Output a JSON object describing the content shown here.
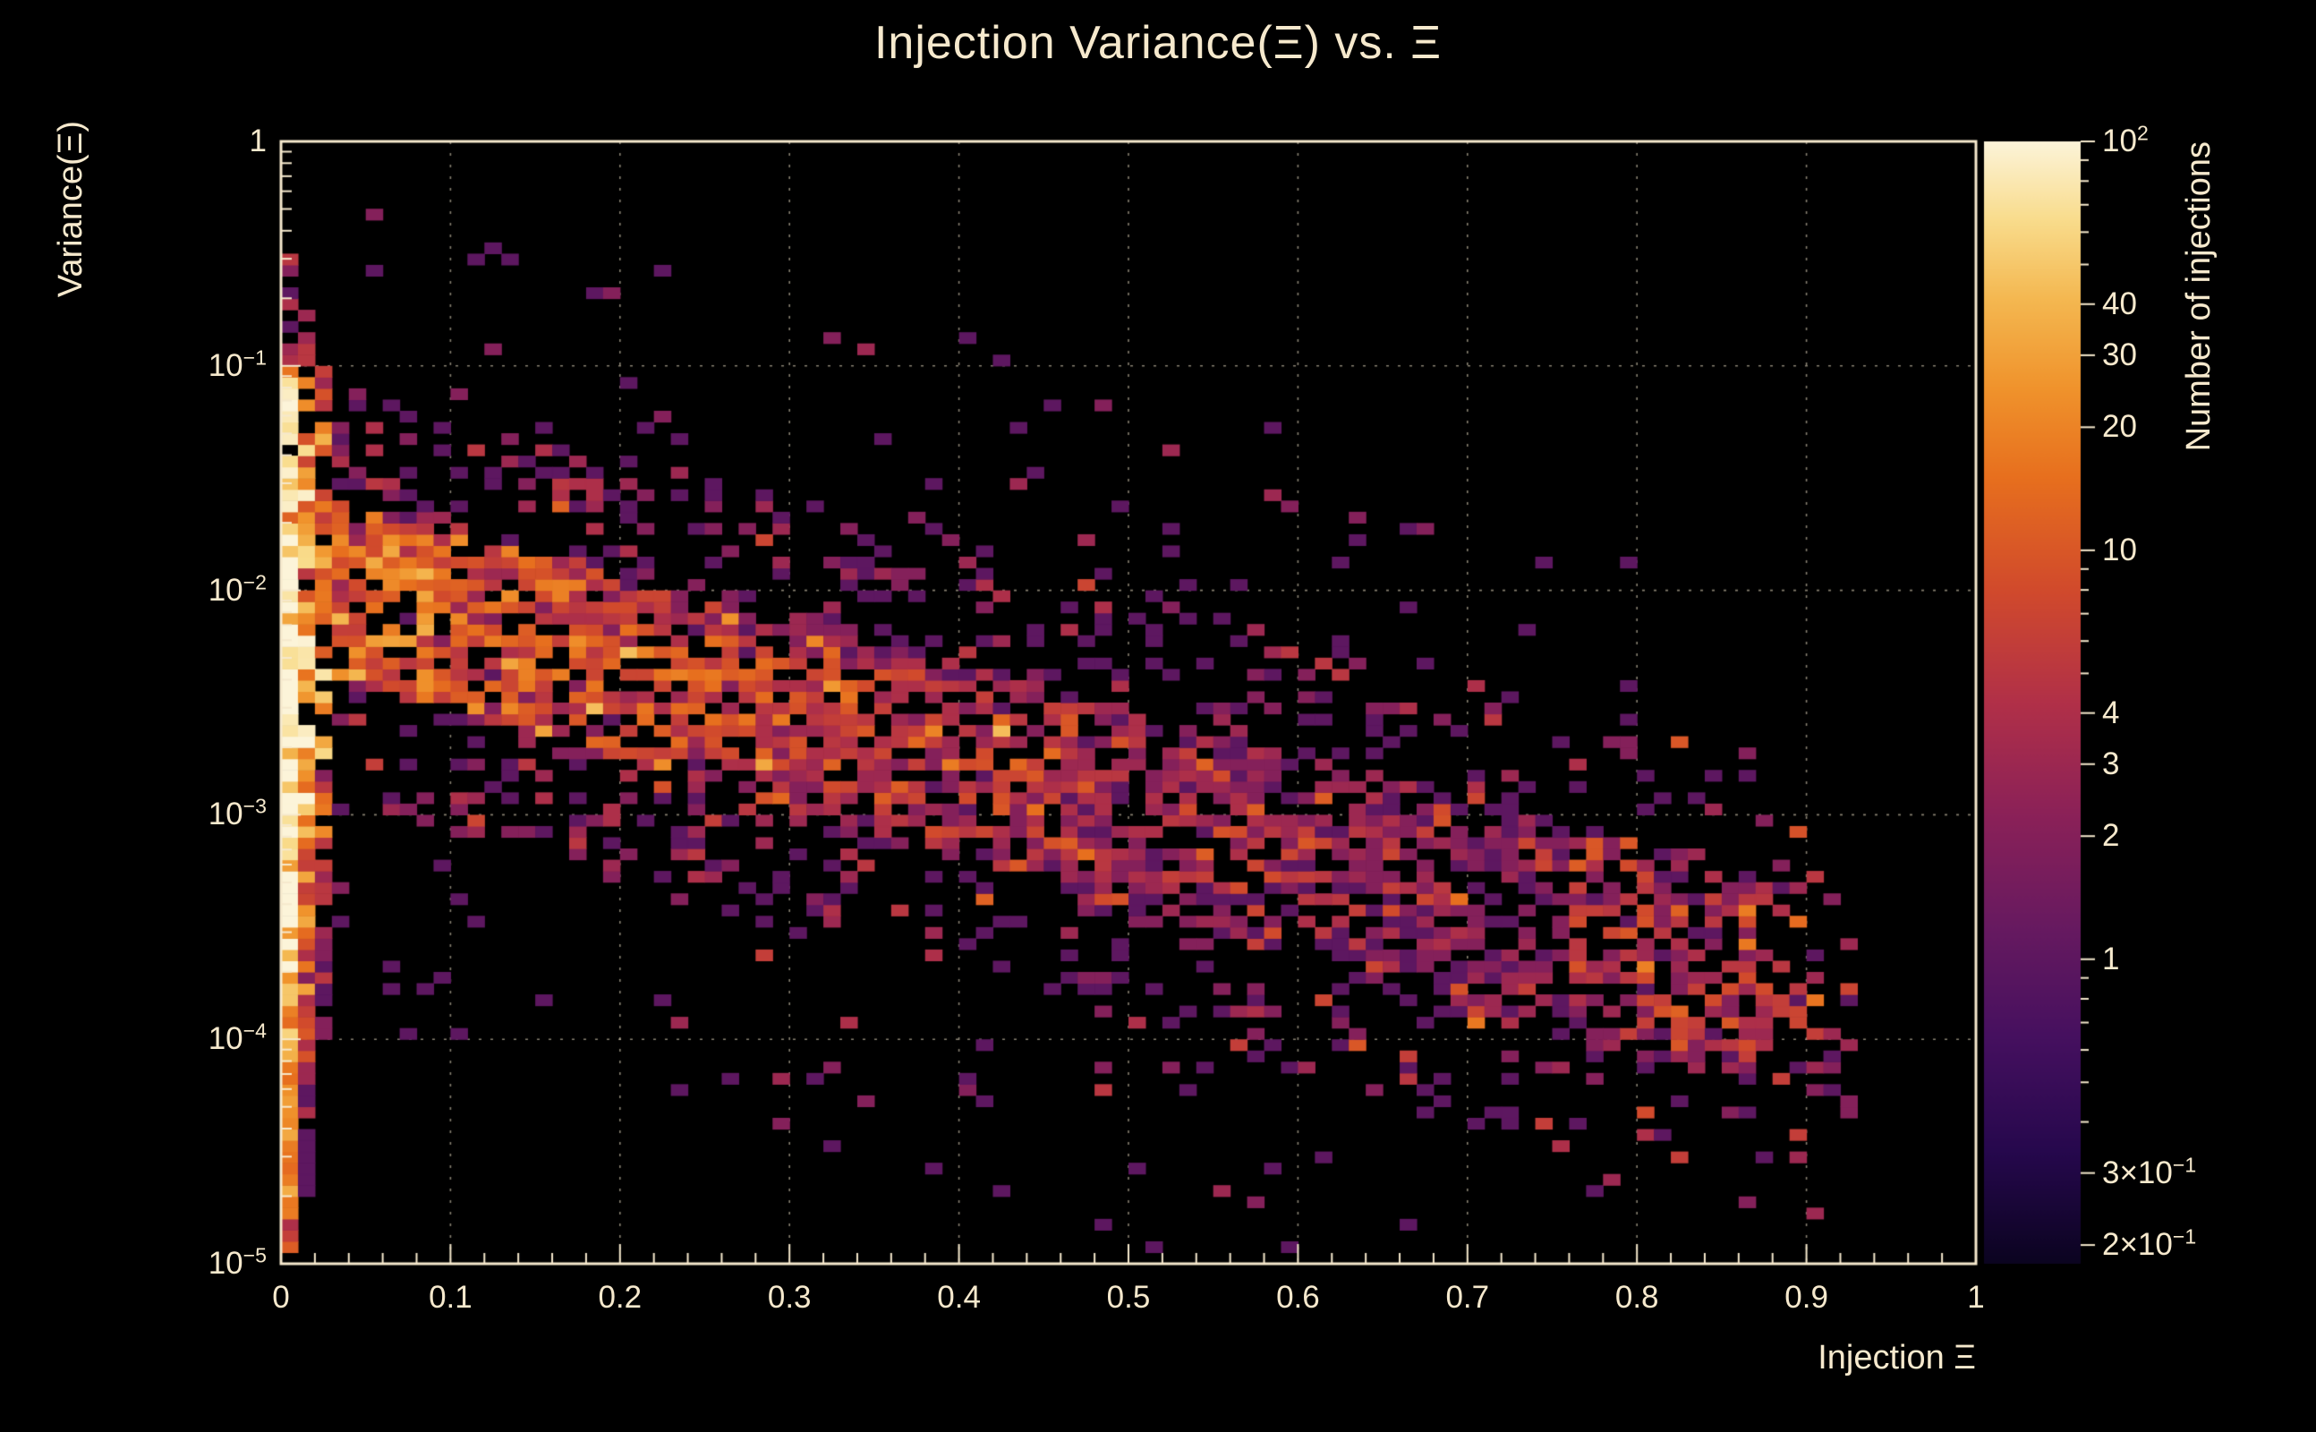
{
  "theme": {
    "background": "#000000",
    "foreground": "#f6e9cd",
    "grid_color": "rgba(246,233,205,0.55)"
  },
  "chart_data": {
    "type": "heatmap",
    "title": "Injection Variance(Ξ) vs. Ξ",
    "xlabel": "Injection Ξ",
    "ylabel": "Variance(Ξ)",
    "zlabel": "Number of injections",
    "xlim": [
      0,
      1
    ],
    "ylim": [
      1e-05,
      1
    ],
    "yscale": "log",
    "zlim": [
      0.18,
      100
    ],
    "zscale": "log",
    "grid": true,
    "legend_position": "right-colorbar",
    "x_ticks": [
      {
        "v": 0,
        "t": "0"
      },
      {
        "v": 0.1,
        "t": "0.1"
      },
      {
        "v": 0.2,
        "t": "0.2"
      },
      {
        "v": 0.3,
        "t": "0.3"
      },
      {
        "v": 0.4,
        "t": "0.4"
      },
      {
        "v": 0.5,
        "t": "0.5"
      },
      {
        "v": 0.6,
        "t": "0.6"
      },
      {
        "v": 0.7,
        "t": "0.7"
      },
      {
        "v": 0.8,
        "t": "0.8"
      },
      {
        "v": 0.9,
        "t": "0.9"
      },
      {
        "v": 1,
        "t": "1"
      }
    ],
    "x_minor_step": 0.02,
    "y_ticks": [
      {
        "v": 1,
        "t": "1"
      },
      {
        "v": 0.1,
        "m": "10",
        "e": "−1"
      },
      {
        "v": 0.01,
        "m": "10",
        "e": "−2"
      },
      {
        "v": 0.001,
        "m": "10",
        "e": "−3"
      },
      {
        "v": 0.0001,
        "m": "10",
        "e": "−4"
      },
      {
        "v": 1e-05,
        "m": "10",
        "e": "−5"
      }
    ],
    "z_ticks": [
      {
        "v": 100,
        "m": "10",
        "e": "2"
      },
      {
        "v": 40,
        "t": "40"
      },
      {
        "v": 30,
        "t": "30"
      },
      {
        "v": 20,
        "t": "20"
      },
      {
        "v": 10,
        "t": "10"
      },
      {
        "v": 4,
        "t": "4"
      },
      {
        "v": 3,
        "t": "3"
      },
      {
        "v": 2,
        "t": "2"
      },
      {
        "v": 1,
        "t": "1"
      },
      {
        "v": 0.3,
        "pre": "3×",
        "m": "10",
        "e": "−1"
      },
      {
        "v": 0.2,
        "pre": "2×",
        "m": "10",
        "e": "−1"
      }
    ],
    "palette": [
      [
        0.0,
        "#0b0420"
      ],
      [
        0.1,
        "#26084d"
      ],
      [
        0.2,
        "#45105f"
      ],
      [
        0.3,
        "#671a60"
      ],
      [
        0.4,
        "#8b2158"
      ],
      [
        0.5,
        "#b13048"
      ],
      [
        0.6,
        "#d14a2c"
      ],
      [
        0.7,
        "#e76f1e"
      ],
      [
        0.78,
        "#f0932c"
      ],
      [
        0.86,
        "#f4b851"
      ],
      [
        0.93,
        "#f9dc8c"
      ],
      [
        1.0,
        "#fcf4d9"
      ]
    ],
    "bins": {
      "nx": 100,
      "ny": 100,
      "seed": 1337,
      "ridge_intercept": -1.93,
      "ridge_slope": -2.08,
      "amp_base": 2,
      "amp_scale": 14,
      "amp_decay": 4.5,
      "cluster_x": [
        0.76,
        0.9
      ],
      "cluster_boost": 2,
      "core_width_base": 0.38,
      "core_width_slope": 0.12,
      "p_core_base": 0.82,
      "p_core_slope": 0.25,
      "p_mid_base": 0.3,
      "p_mid_slope": 0.18,
      "mid_extent": 0.55,
      "outer_extent": 1.5,
      "upper_scatter_xmax": 0.35,
      "upper_scatter_ymax": -1.05,
      "lognorm_sigma": 0.75,
      "xmax_cut": 0.925,
      "count_cap_left": 110,
      "count_cap_band": 45,
      "col_profiles": [
        {
          "yr": [
            -4.97,
            -0.5
          ],
          "p": 0.97,
          "amp": 100,
          "mu": -2.6,
          "w": 1.5
        },
        {
          "yr": [
            -4.7,
            -0.75
          ],
          "p": 0.88,
          "amp": 35,
          "mu": -2.4,
          "w": 1.2
        },
        {
          "yr": [
            -4.0,
            -1.0
          ],
          "p": 0.8,
          "amp": 18,
          "mu": -2.2,
          "w": 1.0
        }
      ]
    }
  }
}
